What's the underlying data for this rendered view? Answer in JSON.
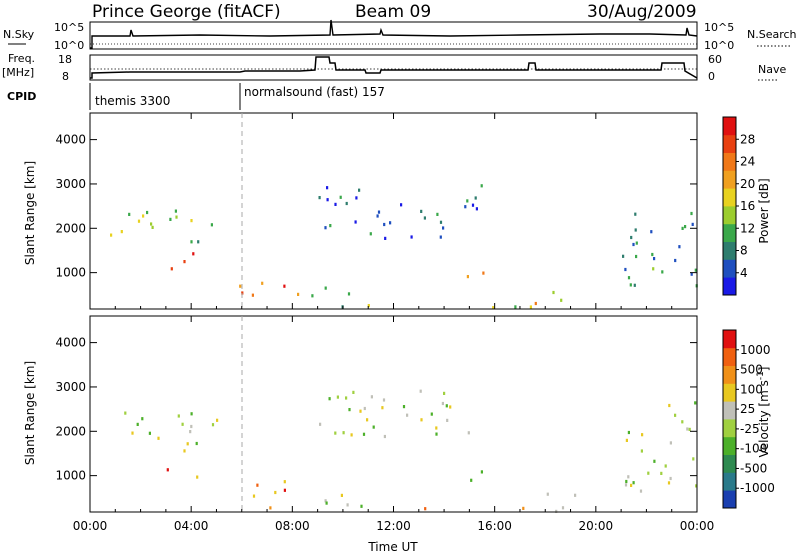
{
  "header": {
    "station": "Prince George (fitACF)",
    "beam": "Beam 09",
    "date": "30/Aug/2009"
  },
  "top_panels": {
    "nsky_label": "N.Sky",
    "nsky_tick_hi": "10^5",
    "nsky_tick_lo": "10^0",
    "nsearch_label": "N.Search",
    "freq_label": "Freq.",
    "freq_unit": "[MHz]",
    "freq_tick_hi": "18",
    "freq_tick_lo": "8",
    "nave_label": "Nave",
    "nave_tick_hi": "60",
    "nave_tick_lo": "0",
    "cpid_label": "CPID",
    "cpid_1": "themis 3300",
    "cpid_2": "normalsound (fast) 157"
  },
  "chart_data": [
    {
      "type": "heatmap",
      "name": "power",
      "ylabel": "Slant Range [km]",
      "xlabel": "Time UT",
      "x_ticks": [
        "00:00",
        "04:00",
        "08:00",
        "12:00",
        "16:00",
        "20:00",
        "00:00"
      ],
      "y_ticks": [
        "1000",
        "2000",
        "3000",
        "4000"
      ],
      "xlim_hours": [
        0,
        24
      ],
      "ylim_km": [
        180,
        4600
      ],
      "colorbar_label": "Power [dB]",
      "colorbar_ticks": [
        "4",
        "8",
        "12",
        "16",
        "20",
        "24",
        "28"
      ],
      "colorbar_colors": [
        "#1a1ae6",
        "#1f4fbf",
        "#2e7d6e",
        "#3aa84a",
        "#9ccd2e",
        "#e8d220",
        "#f0a020",
        "#f07818",
        "#e84010",
        "#e01010"
      ],
      "regions": [
        {
          "t": [
            0.3,
            5.0
          ],
          "r": [
            1700,
            2500
          ],
          "level": 0.45
        },
        {
          "t": [
            2.8,
            4.2
          ],
          "r": [
            1000,
            1600
          ],
          "level": 0.8
        },
        {
          "t": [
            5.8,
            8.5
          ],
          "r": [
            300,
            900
          ],
          "level": 0.75
        },
        {
          "t": [
            8.5,
            11.0
          ],
          "r": [
            250,
            700
          ],
          "level": 0.4
        },
        {
          "t": [
            11.0,
            18.5
          ],
          "r": [
            200,
            300
          ],
          "level": 0.5
        },
        {
          "t": [
            14.8,
            16.0
          ],
          "r": [
            800,
            1200
          ],
          "level": 0.6
        },
        {
          "t": [
            17.5,
            19.5
          ],
          "r": [
            300,
            700
          ],
          "level": 0.55
        },
        {
          "t": [
            21.0,
            24.0
          ],
          "r": [
            600,
            2700
          ],
          "level": 0.25
        },
        {
          "t": [
            9.0,
            15.5
          ],
          "r": [
            1800,
            3000
          ],
          "level": 0.15
        }
      ]
    },
    {
      "type": "heatmap",
      "name": "velocity",
      "ylabel": "Slant Range [km]",
      "xlabel": "Time UT",
      "x_ticks": [
        "00:00",
        "04:00",
        "08:00",
        "12:00",
        "16:00",
        "20:00",
        "00:00"
      ],
      "y_ticks": [
        "1000",
        "2000",
        "3000",
        "4000"
      ],
      "xlim_hours": [
        0,
        24
      ],
      "ylim_km": [
        180,
        4600
      ],
      "colorbar_label": "Velocity [m s^-1]",
      "colorbar_unit_main": "Velocity [m s",
      "colorbar_unit_sup": "-1",
      "colorbar_unit_end": "]",
      "colorbar_ticks": [
        "1000",
        "500",
        "100",
        "25",
        "-25",
        "-100",
        "-500",
        "-1000"
      ],
      "colorbar_colors": [
        "#1a3fb0",
        "#2a7a8a",
        "#2e8a50",
        "#4cb02a",
        "#a0d040",
        "#c0c0b8",
        "#e8c820",
        "#f09018",
        "#f06010",
        "#e01010"
      ],
      "regions": [
        {
          "t": [
            0.3,
            5.0
          ],
          "r": [
            1700,
            2500
          ],
          "level": 0.5
        },
        {
          "t": [
            2.8,
            4.2
          ],
          "r": [
            1000,
            1600
          ],
          "level": 0.8
        },
        {
          "t": [
            5.8,
            8.5
          ],
          "r": [
            300,
            900
          ],
          "level": 0.75
        },
        {
          "t": [
            8.5,
            11.0
          ],
          "r": [
            250,
            700
          ],
          "level": 0.45
        },
        {
          "t": [
            11.0,
            18.5
          ],
          "r": [
            200,
            300
          ],
          "level": 0.65
        },
        {
          "t": [
            14.8,
            16.0
          ],
          "r": [
            800,
            1200
          ],
          "level": 0.3
        },
        {
          "t": [
            17.5,
            19.5
          ],
          "r": [
            300,
            700
          ],
          "level": 0.5
        },
        {
          "t": [
            21.0,
            24.0
          ],
          "r": [
            600,
            2700
          ],
          "level": 0.5
        },
        {
          "t": [
            9.0,
            15.5
          ],
          "r": [
            1800,
            3000
          ],
          "level": 0.5
        }
      ]
    }
  ]
}
